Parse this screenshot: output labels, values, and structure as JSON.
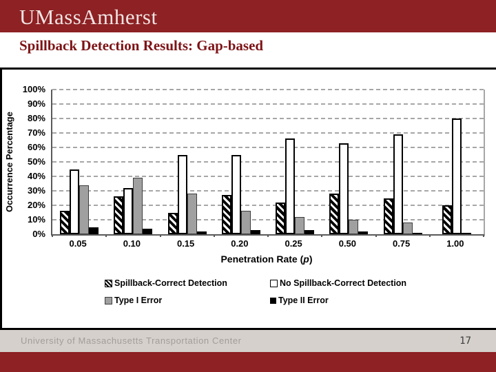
{
  "slide": {
    "logo_text": "UMassAmherst",
    "title": "Spillback Detection Results: Gap-based",
    "footer_text": "University of Massachusetts Transportation Center",
    "page_number": "17"
  },
  "labels": {
    "xlabel_prefix": "Penetration Rate (",
    "xlabel_var": "p",
    "xlabel_suffix": ")"
  },
  "colors": {
    "maroon": "#8d2123",
    "logo_text": "#f2e4e4",
    "title_text": "#7d1316",
    "footer_band": "#d5d0cb",
    "footer_text": "#a29d98",
    "page_number_text": "#3c3c3c",
    "gridline": "#a6a6a6",
    "gray_bar": "#a0a0a0"
  },
  "chart_data": {
    "type": "bar",
    "title": "",
    "xlabel": "Penetration Rate (p)",
    "ylabel": "Occurrence Percentage",
    "categories": [
      "0.05",
      "0.10",
      "0.15",
      "0.20",
      "0.25",
      "0.50",
      "0.75",
      "1.00"
    ],
    "series": [
      {
        "name": "Spillback-Correct Detection",
        "style": "hatched",
        "values": [
          16,
          26,
          15,
          27,
          22,
          28,
          25,
          20
        ]
      },
      {
        "name": "No Spillback-Correct Detection",
        "style": "white",
        "values": [
          45,
          32,
          55,
          55,
          66,
          63,
          69,
          80
        ]
      },
      {
        "name": "Type I Error",
        "style": "gray",
        "values": [
          34,
          39,
          28,
          16,
          12,
          10,
          8,
          0
        ]
      },
      {
        "name": "Type II Error",
        "style": "black",
        "values": [
          5,
          4,
          2,
          3,
          3,
          2,
          1,
          1
        ]
      }
    ],
    "ylim": [
      0,
      100
    ],
    "ytick_step": 10,
    "yticks": [
      "100%",
      "90%",
      "80%",
      "70%",
      "60%",
      "50%",
      "40%",
      "30%",
      "20%",
      "10%",
      "0%"
    ],
    "grid": "horizontal-dashed",
    "legend_position": "below-two-columns"
  }
}
